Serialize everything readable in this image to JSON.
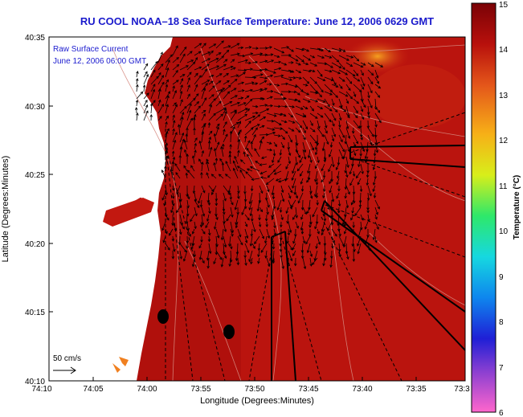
{
  "title": "RU COOL  NOAA–18  Sea Surface Temperature:  June 12, 2006 0629 GMT",
  "overlay": {
    "line1": "Raw Surface Current",
    "line2": "June 12, 2006 06:00 GMT"
  },
  "scale_label": "50 cm/s",
  "axes": {
    "ylabel": "Latitude (Degrees:Minutes)",
    "xlabel": "Longitude (Degrees:Minutes)",
    "y_ticks": [
      "40:35",
      "40:30",
      "40:25",
      "40:20",
      "40:15",
      "40:10"
    ],
    "x_ticks": [
      "74:10",
      "74:05",
      "74:00",
      "73:55",
      "73:50",
      "73:45",
      "73:40",
      "73:35",
      "73:3"
    ]
  },
  "colorbar": {
    "label": "Temperature (°C)",
    "min": 6,
    "max": 15,
    "ticks": [
      "15",
      "14",
      "13",
      "12",
      "11",
      "10",
      "9",
      "8",
      "7",
      "6"
    ],
    "colors": [
      "#ff66cc",
      "#8a3fd1",
      "#1f1fd6",
      "#0e86ee",
      "#16d8e0",
      "#2ee86a",
      "#d8ee1a",
      "#f7b017",
      "#e4561a",
      "#b8100c",
      "#7a0206"
    ]
  },
  "colors": {
    "water": "#b0100c",
    "land": "#ffffff",
    "title": "#1a1acc"
  }
}
